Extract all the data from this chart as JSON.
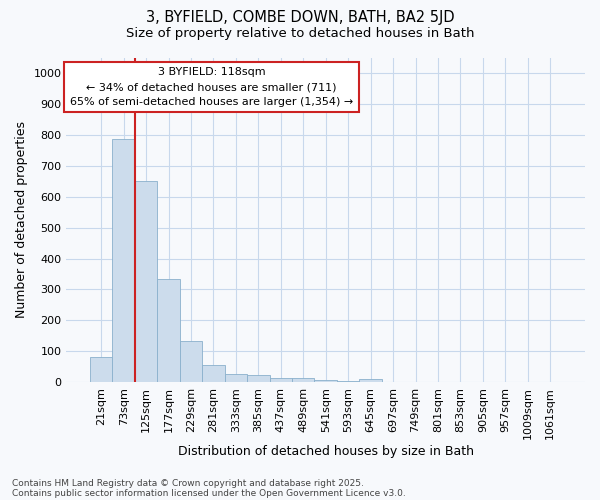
{
  "title1": "3, BYFIELD, COMBE DOWN, BATH, BA2 5JD",
  "title2": "Size of property relative to detached houses in Bath",
  "xlabel": "Distribution of detached houses by size in Bath",
  "ylabel": "Number of detached properties",
  "bar_color": "#ccdcec",
  "bar_edge_color": "#8ab0cc",
  "categories": [
    "21sqm",
    "73sqm",
    "125sqm",
    "177sqm",
    "229sqm",
    "281sqm",
    "333sqm",
    "385sqm",
    "437sqm",
    "489sqm",
    "541sqm",
    "593sqm",
    "645sqm",
    "697sqm",
    "749sqm",
    "801sqm",
    "853sqm",
    "905sqm",
    "957sqm",
    "1009sqm",
    "1061sqm"
  ],
  "values": [
    80,
    785,
    650,
    335,
    133,
    57,
    25,
    22,
    15,
    12,
    6,
    5,
    10,
    0,
    0,
    0,
    0,
    0,
    0,
    0,
    0
  ],
  "vline_x": 1.5,
  "vline_color": "#cc2222",
  "annotation_text": "3 BYFIELD: 118sqm\n← 34% of detached houses are smaller (711)\n65% of semi-detached houses are larger (1,354) →",
  "annotation_box_color": "#ffffff",
  "annotation_box_edge": "#cc2222",
  "ylim": [
    0,
    1050
  ],
  "yticks": [
    0,
    100,
    200,
    300,
    400,
    500,
    600,
    700,
    800,
    900,
    1000
  ],
  "footer1": "Contains HM Land Registry data © Crown copyright and database right 2025.",
  "footer2": "Contains public sector information licensed under the Open Government Licence v3.0.",
  "bg_color": "#f7f9fc",
  "grid_color": "#c8d8ec",
  "title_fontsize": 10.5,
  "subtitle_fontsize": 9.5,
  "axis_label_fontsize": 9,
  "tick_fontsize": 8,
  "footer_fontsize": 6.5
}
